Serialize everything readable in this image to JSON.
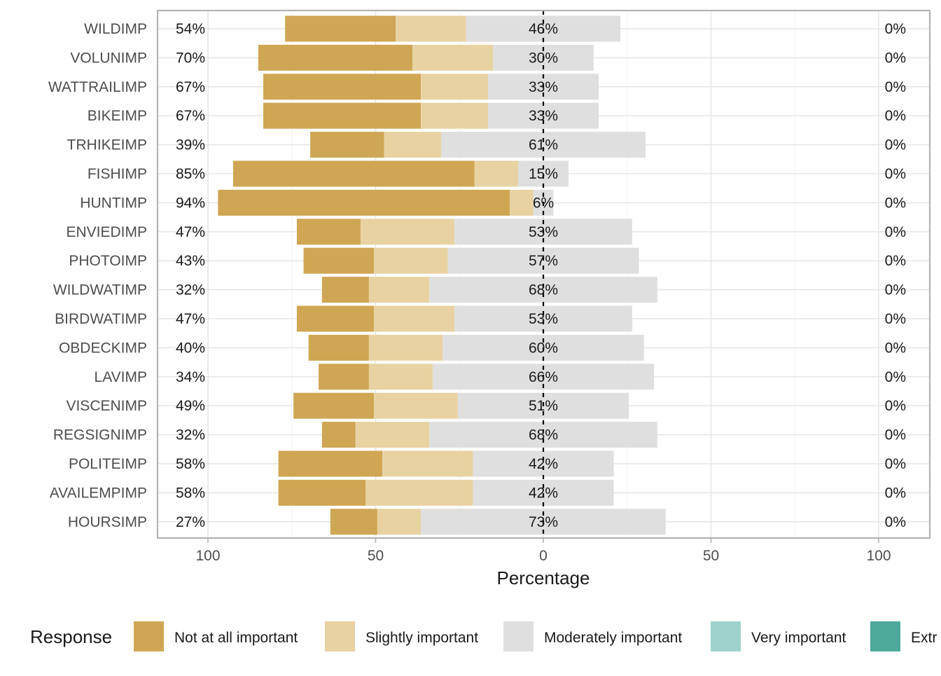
{
  "chart_data": {
    "type": "bar",
    "orientation": "horizontal",
    "diverging": true,
    "xlabel": "Percentage",
    "xticks": [
      "100",
      "50",
      "0",
      "50",
      "100"
    ],
    "xlim": [
      -100,
      100
    ],
    "grid": true,
    "legend_title": "Response",
    "legend_position": "bottom",
    "legend": [
      {
        "label": "Not at all important",
        "color": "#CFA654"
      },
      {
        "label": "Slightly important",
        "color": "#E8D2A2"
      },
      {
        "label": "Moderately important",
        "color": "#DFDFDF"
      },
      {
        "label": "Very important",
        "color": "#9ED2CA"
      },
      {
        "label": "Extr",
        "color": "#4DA99A"
      }
    ],
    "categories": [
      "WILDIMP",
      "VOLUNIMP",
      "WATTRAILIMP",
      "BIKEIMP",
      "TRHIKEIMP",
      "FISHIMP",
      "HUNTIMP",
      "ENVIEDIMP",
      "PHOTOIMP",
      "WILDWATIMP",
      "BIRDWATIMP",
      "OBDECKIMP",
      "LAVIMP",
      "VISCENIMP",
      "REGSIGNIMP",
      "POLITEIMP",
      "AVAILEMPIMP",
      "HOURSIMP"
    ],
    "series": [
      {
        "name": "Not at all important",
        "values": [
          33,
          46,
          47,
          47,
          22,
          72,
          87,
          19,
          21,
          14,
          23,
          18,
          15,
          24,
          10,
          31,
          26,
          14
        ]
      },
      {
        "name": "Slightly important",
        "values": [
          21,
          24,
          20,
          20,
          17,
          13,
          7,
          28,
          22,
          18,
          24,
          22,
          19,
          25,
          22,
          27,
          32,
          13
        ]
      },
      {
        "name": "Moderately important",
        "values": [
          46,
          30,
          33,
          33,
          61,
          15,
          6,
          53,
          57,
          68,
          53,
          60,
          66,
          51,
          68,
          42,
          42,
          73
        ]
      },
      {
        "name": "Very important",
        "values": [
          0,
          0,
          0,
          0,
          0,
          0,
          0,
          0,
          0,
          0,
          0,
          0,
          0,
          0,
          0,
          0,
          0,
          0
        ]
      },
      {
        "name": "Extr",
        "values": [
          0,
          0,
          0,
          0,
          0,
          0,
          0,
          0,
          0,
          0,
          0,
          0,
          0,
          0,
          0,
          0,
          0,
          0
        ]
      }
    ],
    "left_labels": [
      "54%",
      "70%",
      "67%",
      "67%",
      "39%",
      "85%",
      "94%",
      "47%",
      "43%",
      "32%",
      "47%",
      "40%",
      "34%",
      "49%",
      "32%",
      "58%",
      "58%",
      "27%"
    ],
    "center_labels": [
      "46%",
      "30%",
      "33%",
      "33%",
      "61%",
      "15%",
      "6%",
      "53%",
      "57%",
      "68%",
      "53%",
      "60%",
      "66%",
      "51%",
      "68%",
      "42%",
      "42%",
      "73%"
    ],
    "right_labels": [
      "0%",
      "0%",
      "0%",
      "0%",
      "0%",
      "0%",
      "0%",
      "0%",
      "0%",
      "0%",
      "0%",
      "0%",
      "0%",
      "0%",
      "0%",
      "0%",
      "0%",
      "0%"
    ]
  }
}
